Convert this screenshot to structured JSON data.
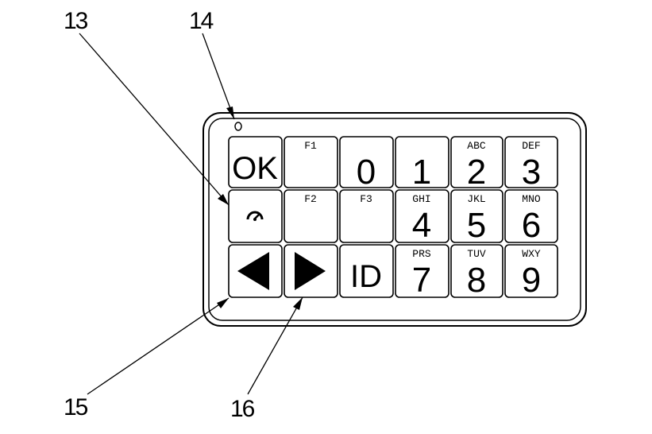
{
  "callouts": [
    "13",
    "14",
    "15",
    "16"
  ],
  "keys": {
    "ok": "OK",
    "f1": "F1",
    "f2": "F2",
    "f3": "F3",
    "id": "ID",
    "k0": {
      "digit": "0",
      "letters": ""
    },
    "k1": {
      "digit": "1",
      "letters": ""
    },
    "k2": {
      "digit": "2",
      "letters": "ABC"
    },
    "k3": {
      "digit": "3",
      "letters": "DEF"
    },
    "k4": {
      "digit": "4",
      "letters": "GHI"
    },
    "k5": {
      "digit": "5",
      "letters": "JKL"
    },
    "k6": {
      "digit": "6",
      "letters": "MNO"
    },
    "k7": {
      "digit": "7",
      "letters": "PRS"
    },
    "k8": {
      "digit": "8",
      "letters": "TUV"
    },
    "k9": {
      "digit": "9",
      "letters": "WXY"
    }
  },
  "icons": {
    "gauge": "gauge-icon",
    "left": "arrow-left-icon",
    "right": "arrow-right-icon",
    "led": "led-indicator"
  }
}
